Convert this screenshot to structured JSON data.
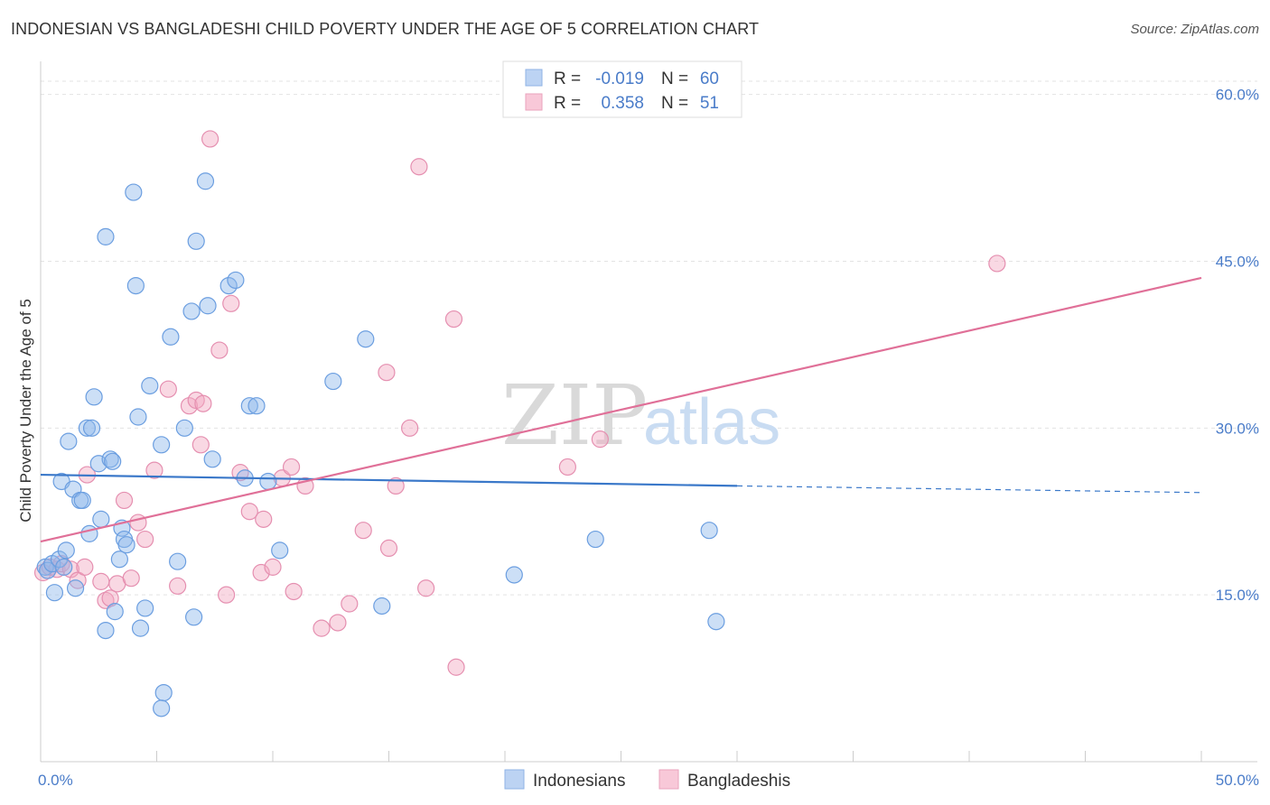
{
  "title": "INDONESIAN VS BANGLADESHI CHILD POVERTY UNDER THE AGE OF 5 CORRELATION CHART",
  "source": "Source: ZipAtlas.com",
  "watermark": {
    "zip": "ZIP",
    "atlas": "atlas"
  },
  "legend": {
    "r_label": "R =",
    "n_label": "N =",
    "rows": [
      {
        "r": "-0.019",
        "n": "60"
      },
      {
        "r": "0.358",
        "n": "51"
      }
    ]
  },
  "chart_data": {
    "type": "scatter",
    "title": "INDONESIAN VS BANGLADESHI CHILD POVERTY UNDER THE AGE OF 5 CORRELATION CHART",
    "xlabel": "",
    "ylabel": "Child Poverty Under the Age of 5",
    "xlim": [
      0,
      50
    ],
    "ylim": [
      0,
      62
    ],
    "x_tick_labels": [
      "0.0%",
      "50.0%"
    ],
    "y_ticks": [
      15,
      30,
      45,
      60
    ],
    "y_tick_labels": [
      "15.0%",
      "30.0%",
      "45.0%",
      "60.0%"
    ],
    "grid": true,
    "legend_position": "top-center",
    "colors": {
      "indonesians": "#8fb8ea",
      "bangladeshis": "#f2a9c2",
      "blue_line": "#3a78c9",
      "pink_line": "#e07098"
    },
    "series": [
      {
        "name": "Indonesians",
        "points": [
          [
            0.2,
            17.5
          ],
          [
            0.3,
            17.2
          ],
          [
            0.5,
            17.8
          ],
          [
            0.6,
            15.2
          ],
          [
            0.8,
            18.2
          ],
          [
            0.9,
            25.2
          ],
          [
            1.0,
            17.5
          ],
          [
            1.1,
            19.0
          ],
          [
            1.2,
            28.8
          ],
          [
            1.4,
            24.5
          ],
          [
            1.5,
            15.6
          ],
          [
            1.7,
            23.5
          ],
          [
            1.8,
            23.5
          ],
          [
            2.0,
            30.0
          ],
          [
            2.1,
            20.5
          ],
          [
            2.2,
            30.0
          ],
          [
            2.3,
            32.8
          ],
          [
            2.5,
            26.8
          ],
          [
            2.6,
            21.8
          ],
          [
            2.8,
            47.2
          ],
          [
            2.8,
            11.8
          ],
          [
            3.0,
            27.2
          ],
          [
            3.1,
            27.0
          ],
          [
            3.2,
            13.5
          ],
          [
            3.4,
            18.2
          ],
          [
            3.5,
            21.0
          ],
          [
            3.6,
            20.0
          ],
          [
            3.7,
            19.5
          ],
          [
            4.0,
            51.2
          ],
          [
            4.1,
            42.8
          ],
          [
            4.2,
            31.0
          ],
          [
            4.3,
            12.0
          ],
          [
            4.5,
            13.8
          ],
          [
            4.7,
            33.8
          ],
          [
            5.2,
            28.5
          ],
          [
            5.3,
            6.2
          ],
          [
            5.2,
            4.8
          ],
          [
            5.6,
            38.2
          ],
          [
            5.9,
            18.0
          ],
          [
            6.2,
            30.0
          ],
          [
            6.5,
            40.5
          ],
          [
            6.6,
            13.0
          ],
          [
            6.7,
            46.8
          ],
          [
            7.1,
            52.2
          ],
          [
            7.2,
            41.0
          ],
          [
            7.4,
            27.2
          ],
          [
            8.1,
            42.8
          ],
          [
            8.4,
            43.3
          ],
          [
            8.8,
            25.5
          ],
          [
            9.0,
            32.0
          ],
          [
            9.3,
            32.0
          ],
          [
            9.8,
            25.2
          ],
          [
            10.3,
            19.0
          ],
          [
            12.6,
            34.2
          ],
          [
            14.0,
            38.0
          ],
          [
            14.7,
            14.0
          ],
          [
            20.4,
            16.8
          ],
          [
            23.9,
            20.0
          ],
          [
            28.8,
            20.8
          ],
          [
            29.1,
            12.6
          ]
        ]
      },
      {
        "name": "Bangladeshis",
        "points": [
          [
            0.1,
            17.0
          ],
          [
            0.4,
            17.5
          ],
          [
            0.7,
            17.3
          ],
          [
            0.9,
            17.8
          ],
          [
            1.3,
            17.3
          ],
          [
            1.6,
            16.3
          ],
          [
            1.9,
            17.5
          ],
          [
            2.0,
            25.8
          ],
          [
            2.6,
            16.2
          ],
          [
            2.8,
            14.5
          ],
          [
            3.0,
            14.7
          ],
          [
            3.3,
            16.0
          ],
          [
            3.6,
            23.5
          ],
          [
            3.9,
            16.5
          ],
          [
            4.2,
            21.5
          ],
          [
            4.5,
            20.0
          ],
          [
            4.9,
            26.2
          ],
          [
            5.5,
            33.5
          ],
          [
            5.9,
            15.8
          ],
          [
            6.4,
            32.0
          ],
          [
            6.7,
            32.5
          ],
          [
            6.9,
            28.5
          ],
          [
            7.0,
            32.2
          ],
          [
            7.3,
            56.0
          ],
          [
            7.7,
            37.0
          ],
          [
            8.0,
            15.0
          ],
          [
            8.2,
            41.2
          ],
          [
            8.6,
            26.0
          ],
          [
            9.0,
            22.5
          ],
          [
            9.5,
            17.0
          ],
          [
            9.6,
            21.8
          ],
          [
            10.0,
            17.5
          ],
          [
            10.4,
            25.5
          ],
          [
            10.8,
            26.5
          ],
          [
            10.9,
            15.3
          ],
          [
            11.4,
            24.8
          ],
          [
            12.1,
            12.0
          ],
          [
            12.8,
            12.5
          ],
          [
            13.3,
            14.2
          ],
          [
            13.9,
            20.8
          ],
          [
            14.9,
            35.0
          ],
          [
            15.0,
            19.2
          ],
          [
            15.3,
            24.8
          ],
          [
            15.9,
            30.0
          ],
          [
            16.3,
            53.5
          ],
          [
            16.6,
            15.6
          ],
          [
            17.8,
            39.8
          ],
          [
            17.9,
            8.5
          ],
          [
            22.7,
            26.5
          ],
          [
            24.1,
            29.0
          ],
          [
            41.2,
            44.8
          ]
        ]
      }
    ],
    "trendlines": [
      {
        "series": "Indonesians",
        "x": [
          0,
          30
        ],
        "y": [
          25.8,
          24.8
        ],
        "dashed_to": [
          50,
          24.2
        ]
      },
      {
        "series": "Bangladeshis",
        "x": [
          0,
          50
        ],
        "y": [
          19.8,
          43.5
        ]
      }
    ]
  },
  "bottom_legend": [
    "Indonesians",
    "Bangladeshis"
  ]
}
